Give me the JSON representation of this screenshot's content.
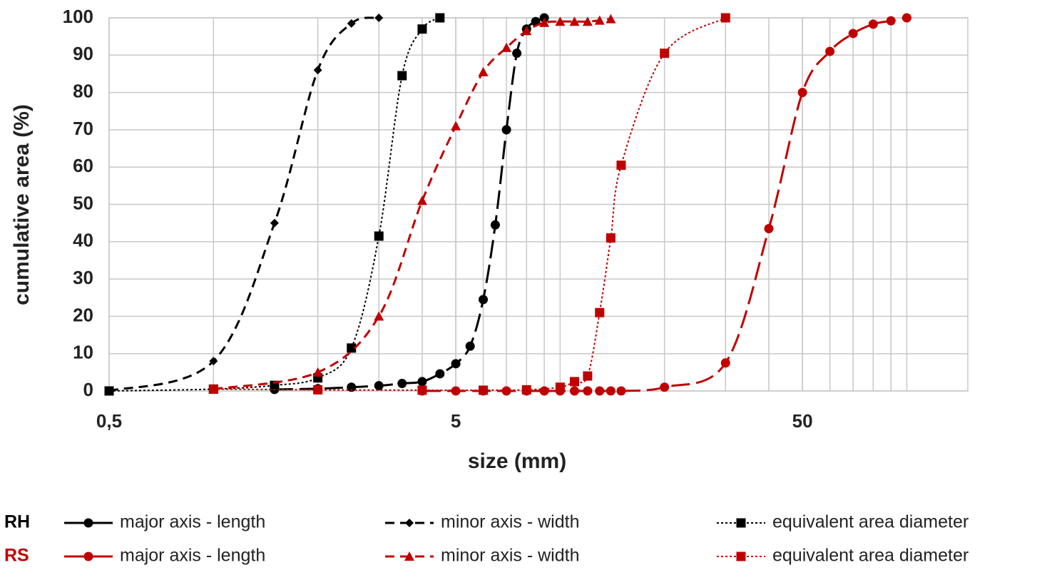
{
  "chart_data": {
    "type": "line",
    "xlabel": "size (mm)",
    "ylabel": "cumulative area (%)",
    "xscale": "log",
    "grid": true,
    "xlim": [
      0.5,
      150
    ],
    "ylim": [
      0,
      100
    ],
    "xticks": [
      {
        "value": 0.5,
        "label": "0,5"
      },
      5,
      50
    ],
    "xgrid": [
      1,
      2,
      3,
      4,
      5,
      6,
      7,
      8,
      9,
      10,
      20,
      30,
      40,
      50,
      60,
      70,
      80,
      90,
      100
    ],
    "yticks": [
      0,
      10,
      20,
      30,
      40,
      50,
      60,
      70,
      80,
      90,
      100
    ],
    "legend_rows": [
      {
        "label": "RH",
        "color": "#000000"
      },
      {
        "label": "RS",
        "color": "#c00000"
      }
    ],
    "series": [
      {
        "name": "major axis - length",
        "color": "#000000",
        "marker": "circle",
        "dash": "long-dash",
        "x": [
          1.5,
          2,
          2.5,
          3,
          3.5,
          4,
          4.5,
          5,
          5.5,
          6,
          6.5,
          7,
          7.5,
          8,
          8.5,
          9
        ],
        "values": [
          0.4,
          0.6,
          1,
          1.4,
          2,
          2.5,
          4.6,
          7.3,
          12,
          24.5,
          44.5,
          70,
          90.5,
          97,
          99,
          100
        ]
      },
      {
        "name": "minor axis - width",
        "color": "#000000",
        "marker": "diamond",
        "dash": "dash",
        "x": [
          0.5,
          1,
          1.5,
          2,
          2.5,
          3
        ],
        "values": [
          0,
          8,
          45,
          86,
          98.5,
          100
        ]
      },
      {
        "name": "equivalent area diameter",
        "color": "#000000",
        "marker": "square",
        "dash": "dot",
        "x": [
          0.5,
          1,
          1.5,
          2,
          2.5,
          3,
          3.5,
          4,
          4.5
        ],
        "values": [
          0,
          0.5,
          1.5,
          3.5,
          11.5,
          41.5,
          84.5,
          97,
          100
        ]
      },
      {
        "name": "major axis - length",
        "color": "#c00000",
        "marker": "circle",
        "dash": "long-dash",
        "x": [
          4,
          5,
          6,
          7,
          8,
          9,
          10,
          11,
          12,
          13,
          14,
          15,
          20,
          30,
          40,
          50,
          60,
          70,
          80,
          90,
          100
        ],
        "values": [
          0,
          0,
          0,
          0,
          0,
          0,
          0,
          0,
          0,
          0,
          0,
          0,
          1,
          7.5,
          43.5,
          80,
          91,
          95.8,
          98.3,
          99.2,
          100
        ]
      },
      {
        "name": "minor axis - width",
        "color": "#c00000",
        "marker": "triangle",
        "dash": "dash",
        "x": [
          1,
          2,
          3,
          4,
          5,
          6,
          7,
          8,
          9,
          10,
          11,
          12,
          13,
          14
        ],
        "values": [
          0.5,
          5,
          20,
          51,
          71,
          85.5,
          92,
          96.5,
          98.7,
          99,
          99,
          99,
          99.3,
          99.7
        ]
      },
      {
        "name": " equivalent area diameter",
        "color": "#c00000",
        "marker": "square",
        "dash": "dot",
        "x": [
          1,
          2,
          4,
          6,
          8,
          10,
          11,
          12,
          13,
          14,
          15,
          20,
          30
        ],
        "values": [
          0.5,
          0.3,
          0.2,
          0.2,
          0.3,
          1,
          2.5,
          4,
          21,
          41,
          60.5,
          90.5,
          100
        ]
      }
    ]
  }
}
